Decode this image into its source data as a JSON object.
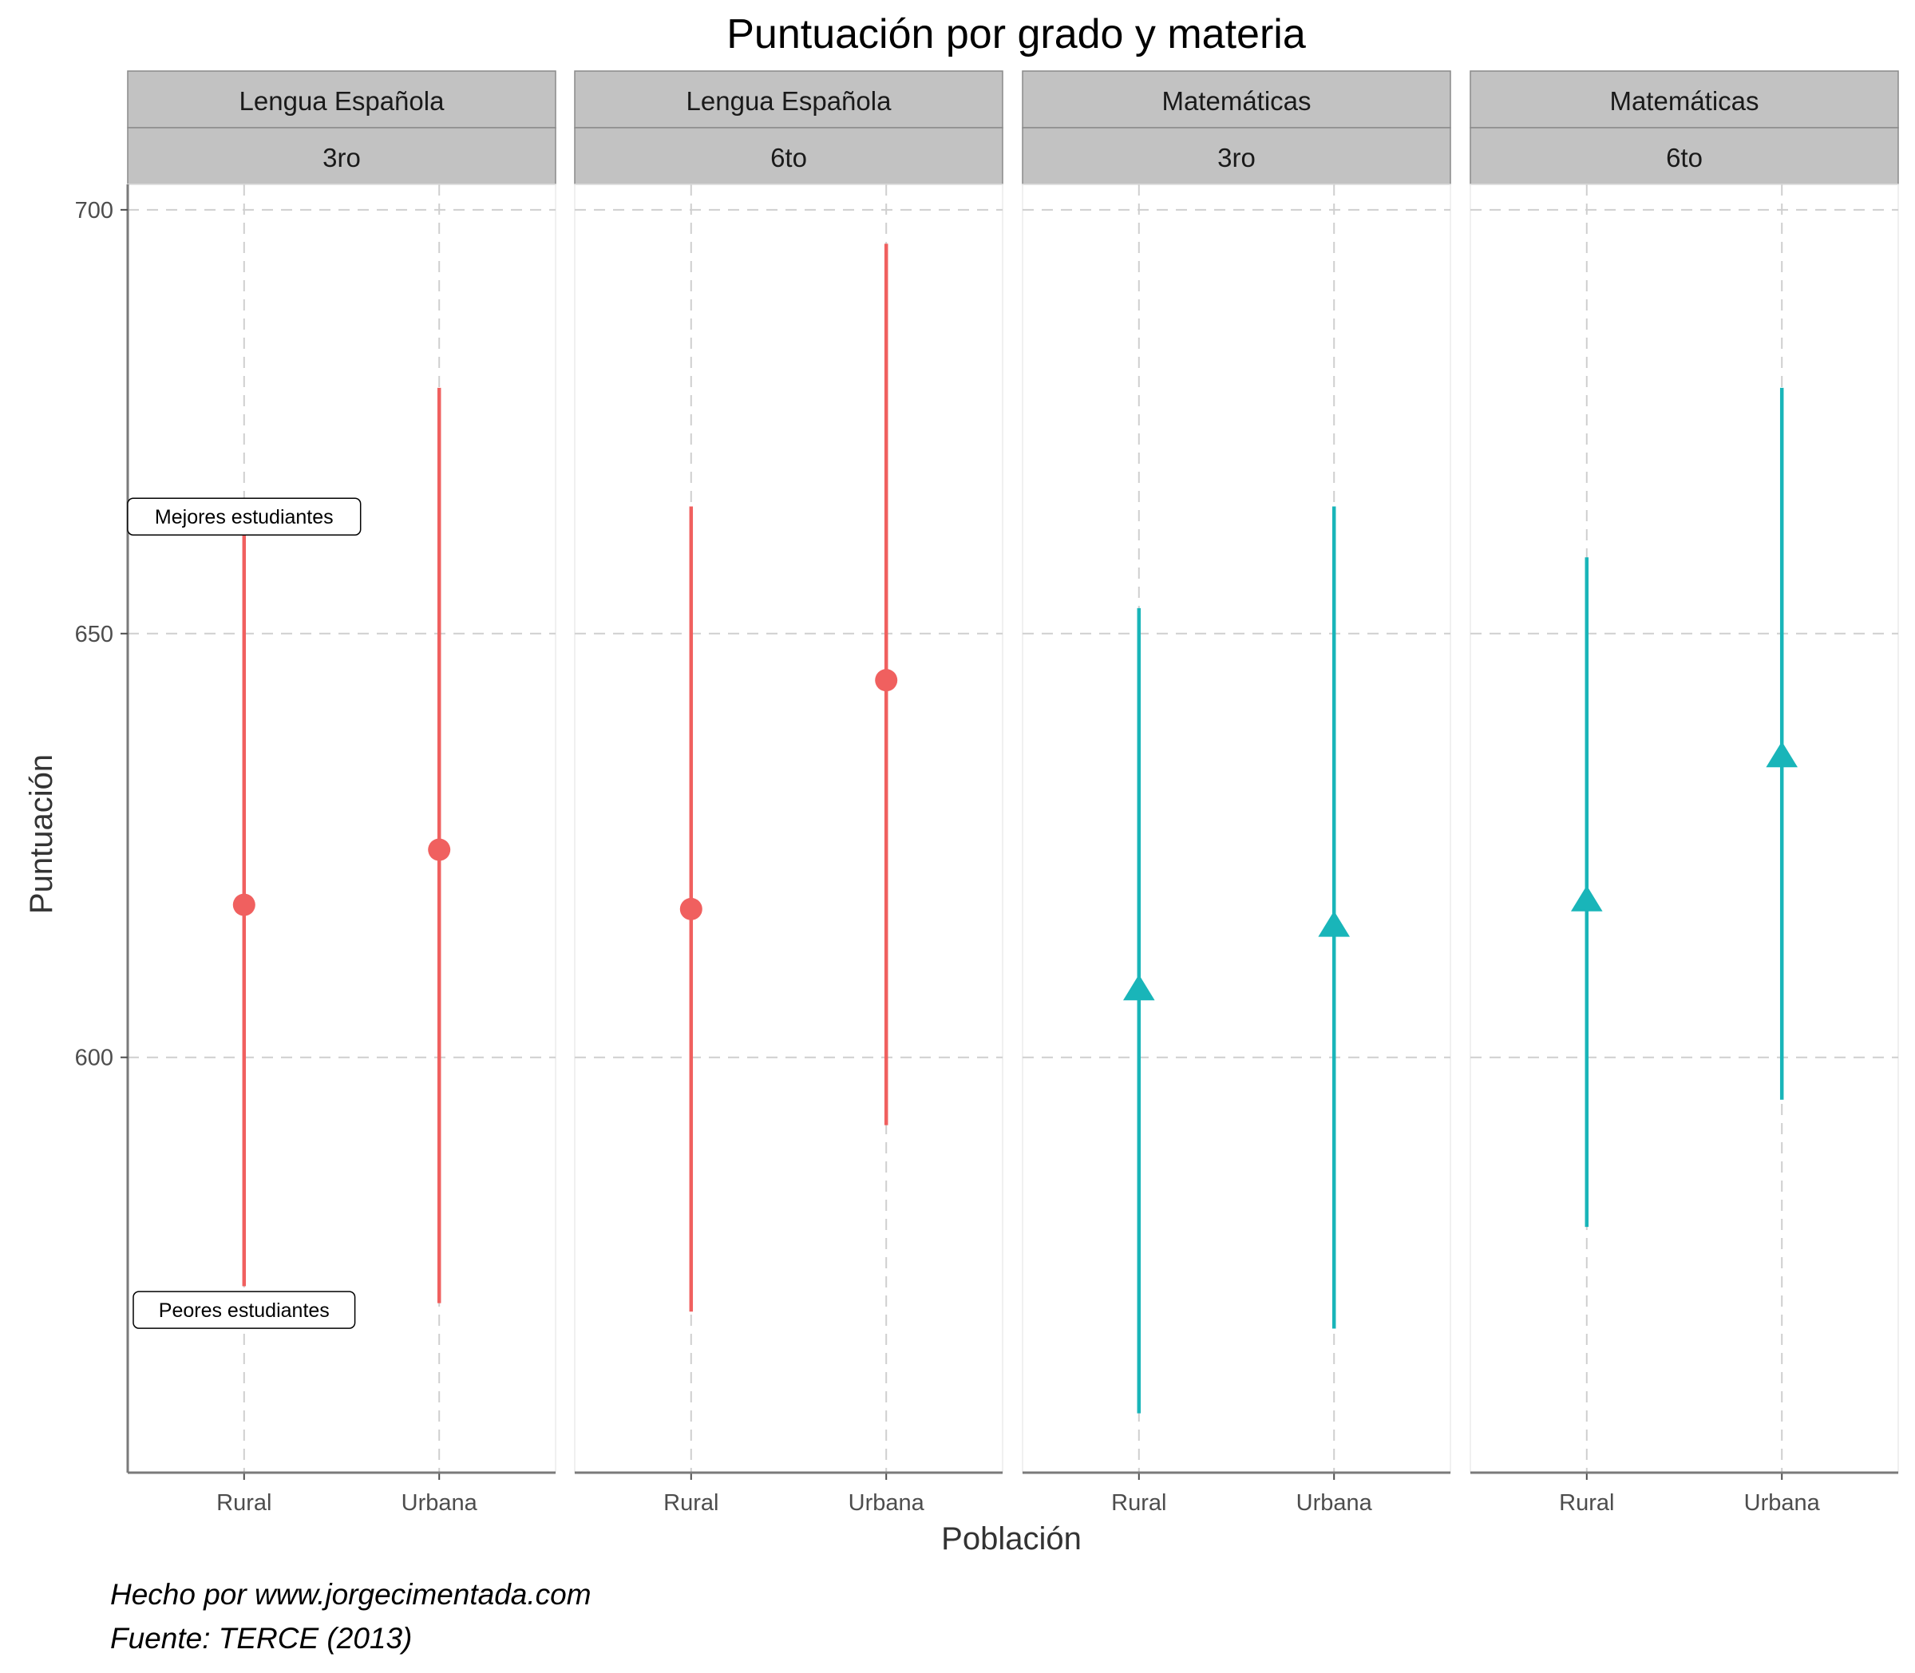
{
  "chart_data": {
    "type": "scatter",
    "title": "Puntuación por grado y materia",
    "xlabel": "Población",
    "ylabel": "Puntuación",
    "caption": [
      "Hecho por www.jorgecimentada.com",
      "Fuente: TERCE (2013)"
    ],
    "categories": [
      "Rural",
      "Urbana"
    ],
    "ylim": [
      551,
      703
    ],
    "yticks": [
      600,
      650,
      700
    ],
    "grid": true,
    "colors": {
      "Lengua Española": "#F0605F",
      "Matemáticas": "#19B5B9"
    },
    "panels": [
      {
        "subject": "Lengua Española",
        "grade": "3ro",
        "shape": "circle",
        "points": [
          {
            "x": "Rural",
            "y": 618,
            "ymin": 573,
            "ymax": 662
          },
          {
            "x": "Urbana",
            "y": 624.5,
            "ymin": 571,
            "ymax": 679
          }
        ]
      },
      {
        "subject": "Lengua Española",
        "grade": "6to",
        "shape": "circle",
        "points": [
          {
            "x": "Rural",
            "y": 617.5,
            "ymin": 570,
            "ymax": 665
          },
          {
            "x": "Urbana",
            "y": 644.5,
            "ymin": 592,
            "ymax": 696
          }
        ]
      },
      {
        "subject": "Matemáticas",
        "grade": "3ro",
        "shape": "triangle",
        "points": [
          {
            "x": "Rural",
            "y": 608,
            "ymin": 558,
            "ymax": 653
          },
          {
            "x": "Urbana",
            "y": 615.5,
            "ymin": 568,
            "ymax": 665
          }
        ]
      },
      {
        "subject": "Matemáticas",
        "grade": "6to",
        "shape": "triangle",
        "points": [
          {
            "x": "Rural",
            "y": 618.5,
            "ymin": 580,
            "ymax": 659
          },
          {
            "x": "Urbana",
            "y": 635.5,
            "ymin": 595,
            "ymax": 679
          }
        ]
      }
    ],
    "annotations": [
      {
        "panel": 0,
        "label": "Mejores estudiantes",
        "x": "Rural",
        "y": 663.8
      },
      {
        "panel": 0,
        "label": "Peores estudiantes",
        "x": "Rural",
        "y": 570.2
      }
    ]
  }
}
